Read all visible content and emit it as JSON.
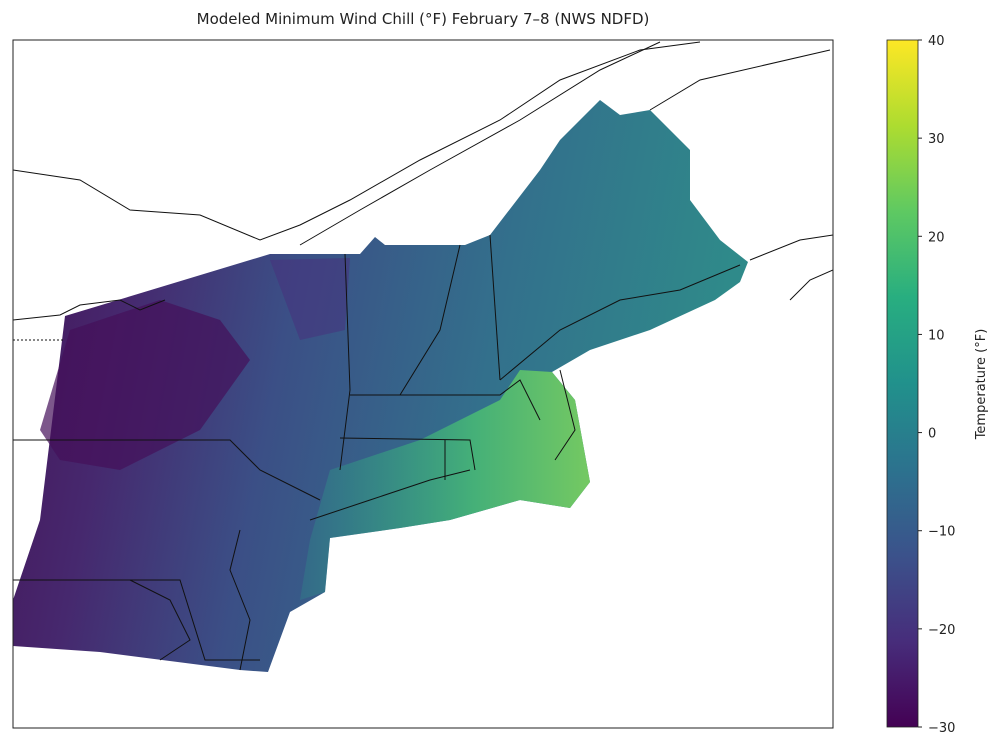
{
  "chart_data": {
    "type": "heatmap",
    "title": "Modeled Minimum Wind Chill (°F) February 7–8 (NWS NDFD)",
    "region": "Northeastern United States",
    "colormap": "viridis",
    "colorbar": {
      "label": "Temperature (°F)",
      "range": [
        -30,
        40
      ],
      "ticks": [
        40,
        30,
        20,
        10,
        0,
        -10,
        -20,
        -30
      ],
      "tick_labels": [
        "40",
        "30",
        "20",
        "10",
        "0",
        "−10",
        "−20",
        "−30"
      ],
      "colors": [
        "#440154",
        "#472d7b",
        "#3b528b",
        "#2c728e",
        "#21918c",
        "#28ae80",
        "#5ec962",
        "#addc30",
        "#fde725"
      ]
    },
    "observed_pattern": {
      "coldest": "western/northern New York and Pennsylvania, about −25 to −30",
      "mild": "Cape Cod and southern New England coast, about 10 to 20"
    }
  }
}
